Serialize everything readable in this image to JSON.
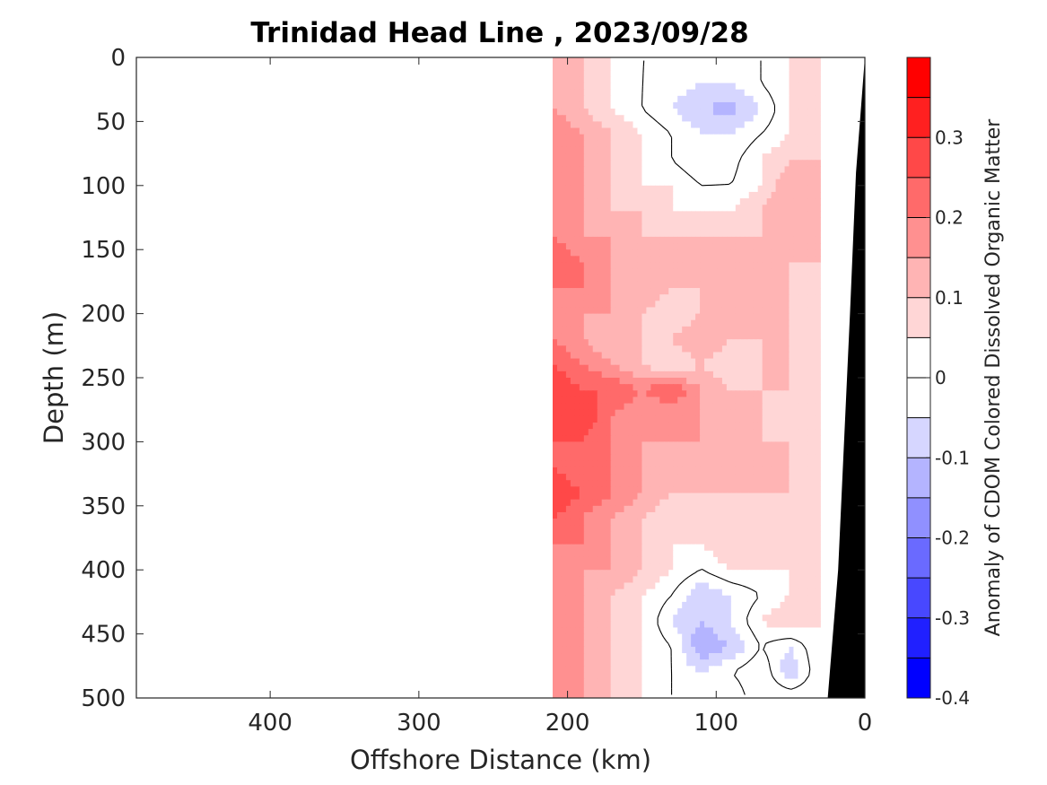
{
  "chart_data": {
    "type": "heatmap",
    "title": "Trinidad Head Line , 2023/09/28",
    "xlabel": "Offshore Distance (km)",
    "ylabel": "Depth (m)",
    "xlim": [
      490,
      0
    ],
    "ylim": [
      0,
      500
    ],
    "x_reversed": true,
    "y_reversed": true,
    "xticks": [
      400,
      300,
      200,
      100,
      0
    ],
    "xtick_labels": [
      "400",
      "300",
      "200",
      "100",
      "0"
    ],
    "yticks": [
      0,
      50,
      100,
      150,
      200,
      250,
      300,
      350,
      400,
      450,
      500
    ],
    "ytick_labels": [
      "0",
      "50",
      "100",
      "150",
      "200",
      "250",
      "300",
      "350",
      "400",
      "450",
      "500"
    ],
    "data_extent_km": [
      210,
      30
    ],
    "seafloor_km": [
      [
        0,
        0
      ],
      [
        2,
        30
      ],
      [
        6,
        90
      ],
      [
        10,
        200
      ],
      [
        14,
        300
      ],
      [
        18,
        400
      ],
      [
        25,
        500
      ]
    ],
    "colorbar": {
      "label": "Anomaly of CDOM Colored Dissolved Organic Matter",
      "range": [
        -0.4,
        0.4
      ],
      "step": 0.05,
      "ticks": [
        0.3,
        0.2,
        0.1,
        0,
        -0.1,
        -0.2,
        -0.3,
        -0.4
      ],
      "tick_labels": [
        "0.3",
        "0.2",
        "0.1",
        "0",
        "-0.1",
        "-0.2",
        "-0.3",
        "-0.4"
      ],
      "colors": [
        "#0000ff",
        "#2020ff",
        "#4848ff",
        "#6a6aff",
        "#9090ff",
        "#b4b4ff",
        "#d6d6ff",
        "#ffffff",
        "#ffffff",
        "#ffd6d6",
        "#ffb4b4",
        "#ff9090",
        "#ff6a6a",
        "#ff4848",
        "#ff2020",
        "#ff0000"
      ]
    },
    "anomaly_grid": {
      "x_km": [
        210,
        190,
        170,
        150,
        130,
        110,
        90,
        70,
        50,
        30
      ],
      "depth_m": [
        0,
        20,
        40,
        60,
        80,
        100,
        120,
        140,
        160,
        180,
        200,
        220,
        240,
        260,
        280,
        300,
        320,
        340,
        360,
        380,
        400,
        420,
        440,
        460,
        480,
        500
      ],
      "values": [
        [
          0.15,
          0.1,
          0.05,
          0.0,
          0.0,
          -0.05,
          -0.05,
          0.0,
          0.05,
          0.1
        ],
        [
          0.15,
          0.1,
          0.05,
          0.0,
          -0.02,
          -0.05,
          -0.05,
          0.0,
          0.05,
          0.1
        ],
        [
          0.15,
          0.1,
          0.05,
          0.0,
          -0.05,
          -0.1,
          -0.12,
          -0.05,
          0.05,
          0.1
        ],
        [
          0.2,
          0.15,
          0.1,
          0.05,
          0.0,
          -0.05,
          -0.05,
          0.0,
          0.05,
          0.1
        ],
        [
          0.2,
          0.15,
          0.1,
          0.05,
          0.0,
          -0.05,
          -0.02,
          0.05,
          0.1,
          0.1
        ],
        [
          0.2,
          0.15,
          0.1,
          0.05,
          0.05,
          0.0,
          0.0,
          0.05,
          0.15,
          0.1
        ],
        [
          0.2,
          0.15,
          0.1,
          0.1,
          0.05,
          0.05,
          0.05,
          0.1,
          0.15,
          0.1
        ],
        [
          0.2,
          0.15,
          0.15,
          0.1,
          0.1,
          0.1,
          0.1,
          0.1,
          0.15,
          0.1
        ],
        [
          0.25,
          0.2,
          0.15,
          0.1,
          0.1,
          0.1,
          0.1,
          0.15,
          0.1,
          0.1
        ],
        [
          0.2,
          0.2,
          0.15,
          0.15,
          0.1,
          0.1,
          0.1,
          0.15,
          0.1,
          0.05
        ],
        [
          0.2,
          0.15,
          0.15,
          0.1,
          0.05,
          0.1,
          0.1,
          0.15,
          0.1,
          0.05
        ],
        [
          0.2,
          0.15,
          0.1,
          0.1,
          0.1,
          0.15,
          0.1,
          0.1,
          0.1,
          0.05
        ],
        [
          0.25,
          0.2,
          0.15,
          0.1,
          0.05,
          0.1,
          0.05,
          0.1,
          0.1,
          0.05
        ],
        [
          0.3,
          0.25,
          0.25,
          0.2,
          0.25,
          0.15,
          0.1,
          0.1,
          0.1,
          0.05
        ],
        [
          0.3,
          0.3,
          0.2,
          0.15,
          0.15,
          0.15,
          0.1,
          0.1,
          0.05,
          0.05
        ],
        [
          0.25,
          0.25,
          0.2,
          0.15,
          0.15,
          0.15,
          0.15,
          0.1,
          0.1,
          0.05
        ],
        [
          0.25,
          0.2,
          0.2,
          0.15,
          0.1,
          0.1,
          0.1,
          0.15,
          0.1,
          0.05
        ],
        [
          0.3,
          0.25,
          0.2,
          0.15,
          0.1,
          0.1,
          0.1,
          0.1,
          0.1,
          0.05
        ],
        [
          0.25,
          0.2,
          0.15,
          0.1,
          0.05,
          0.05,
          0.05,
          0.1,
          0.05,
          0.05
        ],
        [
          0.2,
          0.2,
          0.15,
          0.1,
          0.05,
          0.05,
          0.1,
          0.1,
          0.1,
          0.05
        ],
        [
          0.2,
          0.15,
          0.15,
          0.1,
          0.05,
          0.0,
          0.05,
          0.05,
          0.05,
          0.05
        ],
        [
          0.2,
          0.15,
          0.1,
          0.05,
          0.0,
          -0.1,
          -0.05,
          0.0,
          0.05,
          0.05
        ],
        [
          0.2,
          0.15,
          0.1,
          0.05,
          -0.05,
          -0.1,
          -0.05,
          0.05,
          0.1,
          0.05
        ],
        [
          0.2,
          0.15,
          0.1,
          0.05,
          0.0,
          -0.15,
          -0.1,
          0.0,
          -0.05,
          0.05
        ],
        [
          0.2,
          0.15,
          0.1,
          0.05,
          0.0,
          -0.05,
          0.0,
          0.05,
          -0.1,
          0.05
        ],
        [
          0.2,
          0.15,
          0.1,
          0.05,
          0.0,
          -0.05,
          -0.05,
          0.05,
          0.05,
          0.05
        ]
      ]
    }
  }
}
